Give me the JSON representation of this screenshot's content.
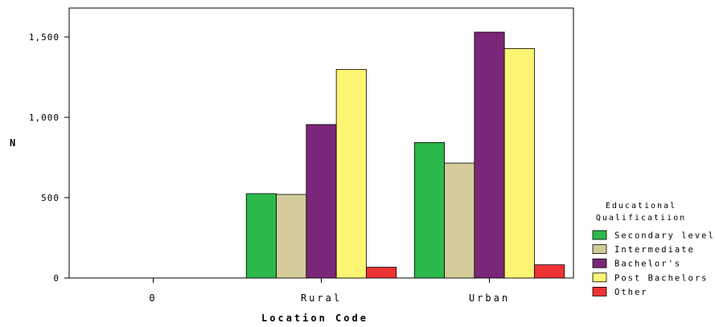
{
  "chart_data": {
    "type": "bar",
    "title": "",
    "xlabel": "Location Code",
    "ylabel": "N",
    "categories": [
      "0",
      "Rural",
      "Urban"
    ],
    "ylim": [
      0,
      1500
    ],
    "ymax_plot": 1680,
    "yticks": [
      0,
      500,
      1000,
      1500
    ],
    "ytick_labels": [
      "0",
      "500",
      "1,000",
      "1,500"
    ],
    "grid": false,
    "legend_position": "right",
    "legend_title_lines": [
      "Educational",
      "Qualificatiion"
    ],
    "series": [
      {
        "name": "Secondary level",
        "color": "#2db84b",
        "values": [
          0,
          525,
          843
        ]
      },
      {
        "name": "Intermediate",
        "color": "#d3cc9a",
        "values": [
          0,
          520,
          715
        ]
      },
      {
        "name": "Bachelor's",
        "color": "#7b2779",
        "values": [
          0,
          955,
          1530
        ]
      },
      {
        "name": "Post Bachelors",
        "color": "#fcf574",
        "values": [
          0,
          1298,
          1428
        ]
      },
      {
        "name": "Other",
        "color": "#ee3334",
        "values": [
          0,
          67,
          82
        ]
      }
    ]
  }
}
